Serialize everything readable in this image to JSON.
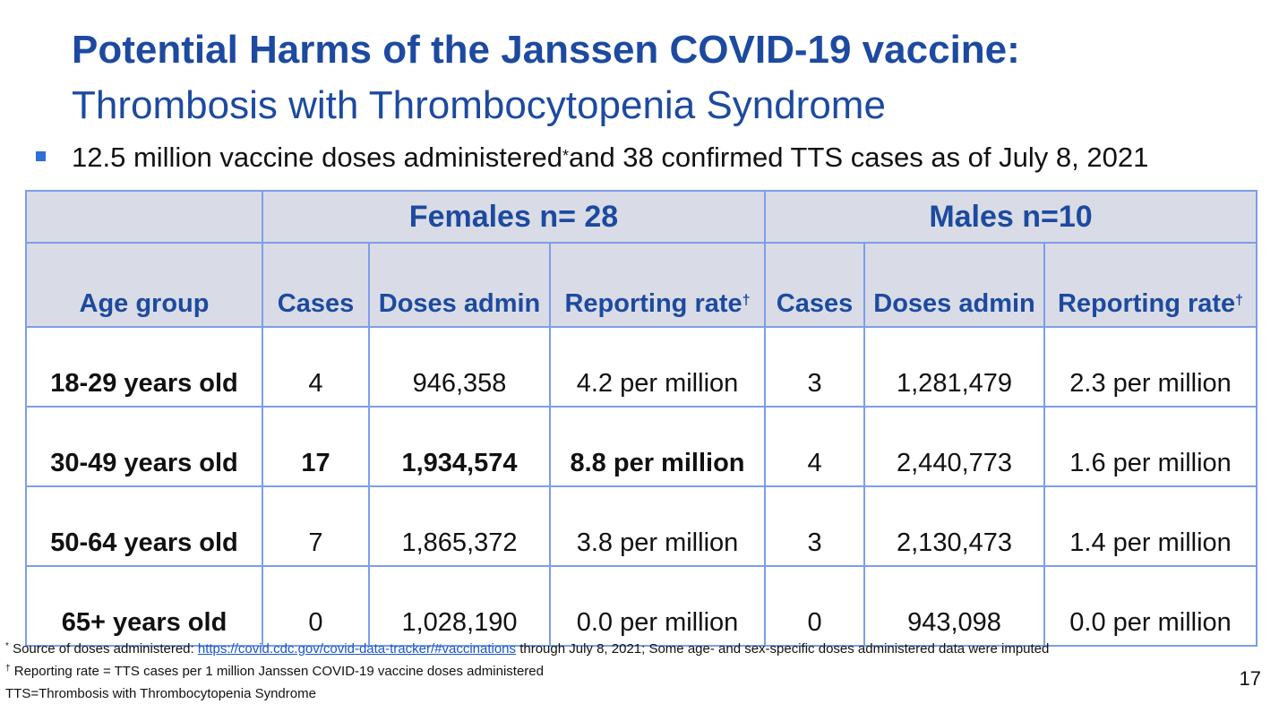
{
  "slide": {
    "title": "Potential Harms of the Janssen COVID-19 vaccine:",
    "subtitle": "Thrombosis with Thrombocytopenia Syndrome",
    "bullet": {
      "text_before": "12.5 million vaccine doses administered",
      "marker": "*",
      "text_after": "and 38 confirmed TTS cases as of July 8, 2021"
    },
    "page_number": "17"
  },
  "table": {
    "group_headers": {
      "blank": "",
      "females": "Females n= 28",
      "males": "Males n=10"
    },
    "column_headers": {
      "age_group": "Age group",
      "cases": "Cases",
      "doses": "Doses admin",
      "rate": "Reporting rate",
      "rate_marker": "†"
    },
    "rows": [
      {
        "age": "18-29 years old",
        "f_cases": "4",
        "f_doses": "946,358",
        "f_rate": "4.2 per million",
        "m_cases": "3",
        "m_doses": "1,281,479",
        "m_rate": "2.3 per million",
        "highlight": false
      },
      {
        "age": "30-49 years old",
        "f_cases": "17",
        "f_doses": "1,934,574",
        "f_rate": "8.8 per million",
        "m_cases": "4",
        "m_doses": "2,440,773",
        "m_rate": "1.6 per million",
        "highlight": true
      },
      {
        "age": "50-64 years old",
        "f_cases": "7",
        "f_doses": "1,865,372",
        "f_rate": "3.8 per million",
        "m_cases": "3",
        "m_doses": "2,130,473",
        "m_rate": "1.4 per million",
        "highlight": false
      },
      {
        "age": "65+ years old",
        "f_cases": "0",
        "f_doses": "1,028,190",
        "f_rate": "0.0 per million",
        "m_cases": "0",
        "m_doses": "943,098",
        "m_rate": "0.0 per million",
        "highlight": false
      }
    ]
  },
  "footnotes": {
    "source": {
      "marker": "*",
      "prefix": "Source of doses administered: ",
      "link": "https://covid.cdc.gov/covid-data-tracker/#vaccinations",
      "suffix": " through July 8, 2021; Some age- and sex-specific doses administered data were imputed"
    },
    "rate": {
      "marker": "†",
      "text": "Reporting rate = TTS cases per 1 million Janssen COVID-19 vaccine doses administered"
    },
    "abbrev": "TTS=Thrombosis with Thrombocytopenia Syndrome"
  },
  "colors": {
    "title_blue": "#1d4aa0",
    "header_fill": "#d9dce6",
    "border_blue": "#7d9ee8",
    "bullet_blue": "#2f6fd6",
    "link_blue": "#1a56c9"
  }
}
